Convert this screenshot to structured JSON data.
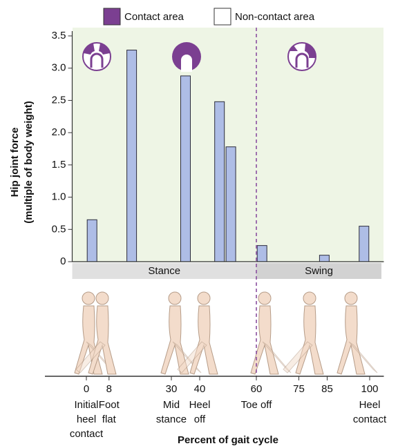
{
  "chart_data": {
    "type": "bar",
    "ylabel": [
      "Hip joint force",
      "(multiple of body weight)"
    ],
    "xlabel": "Percent of gait cycle",
    "legend": [
      {
        "name": "Contact area",
        "color": "#7b3f91"
      },
      {
        "name": "Non-contact area",
        "color": "#ffffff"
      }
    ],
    "x": [
      2,
      16,
      35,
      47,
      51,
      62,
      84,
      98
    ],
    "values": [
      0.65,
      3.28,
      2.88,
      2.48,
      1.78,
      0.25,
      0.1,
      0.55
    ],
    "color": "#aebde6",
    "xlim": [
      -5,
      105
    ],
    "ylim": [
      0,
      3.5
    ],
    "yticks": [
      0,
      0.5,
      {
        "value": 1,
        "label": "1.0"
      },
      1.5,
      {
        "value": 2,
        "label": "2.0"
      },
      2.5,
      {
        "value": 3,
        "label": "3.0"
      },
      3.5
    ],
    "xticks": [
      0,
      8,
      30,
      40,
      60,
      75,
      85,
      100
    ],
    "toe_off": 60,
    "phases": [
      "Stance",
      "Swing"
    ],
    "events": [
      {
        "x": 0,
        "lines": [
          "Initial",
          "heel",
          "contact"
        ]
      },
      {
        "x": 8,
        "lines": [
          "Foot",
          "flat"
        ]
      },
      {
        "x": 30,
        "lines": [
          "Mid",
          "stance"
        ]
      },
      {
        "x": 40,
        "lines": [
          "Heel",
          "off"
        ]
      },
      {
        "x": 60,
        "lines": [
          "Toe off"
        ]
      },
      {
        "x": 100,
        "lines": [
          "Heel",
          "contact"
        ]
      }
    ]
  }
}
